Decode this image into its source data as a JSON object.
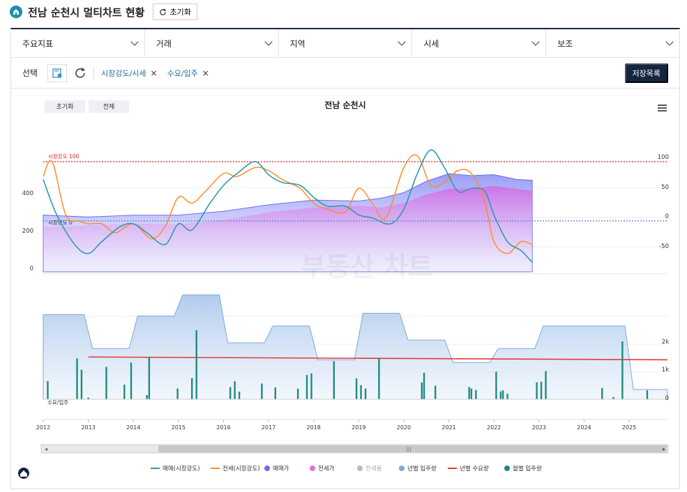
{
  "header": {
    "title": "전남 순천시 멀티차트 현황",
    "reset_label": "초기화"
  },
  "filters": [
    {
      "label": "주요지표"
    },
    {
      "label": "거래"
    },
    {
      "label": "지역"
    },
    {
      "label": "시세"
    },
    {
      "label": "보조"
    }
  ],
  "selection": {
    "label": "선택",
    "chips": [
      "시장강도/시세",
      "수요/입주"
    ],
    "save_label": "저장목록"
  },
  "chart_controls": {
    "reset_label": "초기화",
    "all_label": "전체"
  },
  "colors": {
    "trade": "#2e9aa8",
    "jeonse": "#ff8c2a",
    "trade_price": "#6b6cf0",
    "jeonse_price": "#e070e0",
    "jeonse_rate": "#bbbbbb",
    "yearly_supply": "#7fa8d8",
    "yearly_demand": "#e03a3a",
    "monthly_supply": "#1d8a80"
  },
  "chart_data": {
    "type": "line",
    "title": "전남 순천시",
    "x_ticks": [
      "2012",
      "2013",
      "2014",
      "2015",
      "2016",
      "2017",
      "2018",
      "2019",
      "2020",
      "2021",
      "2022",
      "2023",
      "2024",
      "2025"
    ],
    "upper": {
      "left_ticks": [
        "400",
        "200",
        "0"
      ],
      "right_ticks": [
        "100",
        "50",
        "0",
        "-50"
      ],
      "ref_lines": [
        {
          "label": "시장강도 100",
          "value": 100,
          "color": "#e02020"
        },
        {
          "label": "시장강도 0",
          "value": 0,
          "color": "#5a7ad8"
        }
      ],
      "ylim_strength": [
        -80,
        100
      ],
      "ylim_price": [
        0,
        500
      ],
      "series": [
        {
          "name": "매매(시장강도)",
          "x": [
            2012.0,
            2012.3,
            2012.7,
            2013.0,
            2013.3,
            2013.7,
            2014.0,
            2014.3,
            2014.7,
            2015.0,
            2015.3,
            2015.7,
            2016.0,
            2016.3,
            2016.7,
            2017.0,
            2017.3,
            2017.7,
            2018.0,
            2018.3,
            2018.7,
            2019.0,
            2019.3,
            2019.7,
            2020.0,
            2020.3,
            2020.6,
            2020.9,
            2021.2,
            2021.5,
            2021.8,
            2022.0,
            2022.3,
            2022.6,
            2022.85
          ],
          "values": [
            70,
            10,
            -40,
            -55,
            -35,
            -10,
            -5,
            -20,
            -40,
            -5,
            -15,
            30,
            60,
            80,
            100,
            78,
            65,
            60,
            40,
            25,
            25,
            10,
            5,
            -5,
            20,
            80,
            120,
            90,
            50,
            55,
            50,
            10,
            -35,
            -50,
            -70
          ]
        },
        {
          "name": "전세(시장강도)",
          "x": [
            2012.0,
            2012.2,
            2012.5,
            2012.8,
            2013.0,
            2013.3,
            2013.6,
            2014.0,
            2014.4,
            2014.7,
            2015.0,
            2015.3,
            2015.6,
            2016.0,
            2016.3,
            2016.7,
            2017.0,
            2017.3,
            2017.7,
            2018.0,
            2018.3,
            2018.7,
            2019.0,
            2019.3,
            2019.6,
            2020.0,
            2020.3,
            2020.6,
            2020.9,
            2021.2,
            2021.5,
            2021.8,
            2022.0,
            2022.3,
            2022.6,
            2022.85
          ],
          "values": [
            75,
            100,
            10,
            0,
            -5,
            -5,
            -20,
            -5,
            -30,
            -10,
            40,
            30,
            50,
            80,
            75,
            90,
            85,
            70,
            55,
            30,
            20,
            15,
            55,
            30,
            5,
            90,
            110,
            60,
            65,
            85,
            80,
            30,
            -35,
            -55,
            -35,
            -40
          ]
        },
        {
          "name": "매매가",
          "x": [
            2012,
            2013,
            2014,
            2015,
            2016,
            2017,
            2018,
            2019,
            2019.5,
            2020,
            2020.5,
            2021,
            2021.5,
            2022,
            2022.5,
            2022.85
          ],
          "values": [
            290,
            280,
            290,
            290,
            310,
            345,
            370,
            365,
            380,
            410,
            470,
            510,
            500,
            505,
            480,
            475
          ]
        },
        {
          "name": "전세가",
          "x": [
            2012,
            2013,
            2014,
            2015,
            2016,
            2017,
            2018,
            2019,
            2019.5,
            2020,
            2020.5,
            2021,
            2021.5,
            2022,
            2022.5,
            2022.85
          ],
          "values": [
            225,
            235,
            245,
            240,
            265,
            305,
            330,
            340,
            330,
            355,
            400,
            430,
            430,
            445,
            430,
            420
          ]
        }
      ]
    },
    "lower": {
      "right_ticks": [
        "2k",
        "1k",
        "0"
      ],
      "ylim": [
        0,
        3700
      ],
      "label": "수요/입주",
      "yearly_supply": [
        3000,
        1800,
        2950,
        3700,
        2000,
        2600,
        1400,
        3050,
        2100,
        1300,
        1800,
        2600,
        2600,
        350
      ],
      "yearly_demand": [
        1500,
        1500,
        1490,
        1480,
        1470,
        1460,
        1450,
        1440,
        1440,
        1430,
        1420,
        1410,
        1400,
        1400
      ],
      "monthly_supply": [
        {
          "x": 2012.1,
          "v": 650
        },
        {
          "x": 2012.75,
          "v": 1450
        },
        {
          "x": 2012.85,
          "v": 1050
        },
        {
          "x": 2013.0,
          "v": 60
        },
        {
          "x": 2013.4,
          "v": 1150
        },
        {
          "x": 2013.8,
          "v": 520
        },
        {
          "x": 2013.95,
          "v": 1300
        },
        {
          "x": 2014.3,
          "v": 150
        },
        {
          "x": 2014.35,
          "v": 1500
        },
        {
          "x": 2014.98,
          "v": 380
        },
        {
          "x": 2015.3,
          "v": 750
        },
        {
          "x": 2015.4,
          "v": 2450
        },
        {
          "x": 2016.15,
          "v": 430
        },
        {
          "x": 2016.25,
          "v": 640
        },
        {
          "x": 2016.35,
          "v": 270
        },
        {
          "x": 2016.85,
          "v": 560
        },
        {
          "x": 2017.15,
          "v": 420
        },
        {
          "x": 2017.65,
          "v": 380
        },
        {
          "x": 2017.85,
          "v": 860
        },
        {
          "x": 2017.95,
          "v": 920
        },
        {
          "x": 2018.45,
          "v": 1350
        },
        {
          "x": 2018.95,
          "v": 740
        },
        {
          "x": 2019.05,
          "v": 500
        },
        {
          "x": 2019.15,
          "v": 380
        },
        {
          "x": 2019.45,
          "v": 1450
        },
        {
          "x": 2020.4,
          "v": 600
        },
        {
          "x": 2020.45,
          "v": 940
        },
        {
          "x": 2020.7,
          "v": 480
        },
        {
          "x": 2021.45,
          "v": 440
        },
        {
          "x": 2021.5,
          "v": 380
        },
        {
          "x": 2021.6,
          "v": 330
        },
        {
          "x": 2022.05,
          "v": 980
        },
        {
          "x": 2022.15,
          "v": 280
        },
        {
          "x": 2022.2,
          "v": 320
        },
        {
          "x": 2022.3,
          "v": 200
        },
        {
          "x": 2022.95,
          "v": 600
        },
        {
          "x": 2023.05,
          "v": 620
        },
        {
          "x": 2023.15,
          "v": 1000
        },
        {
          "x": 2024.4,
          "v": 400
        },
        {
          "x": 2024.65,
          "v": 80
        },
        {
          "x": 2024.85,
          "v": 2050
        },
        {
          "x": 2025.4,
          "v": 320
        }
      ]
    },
    "legend": [
      "매매(시장강도)",
      "전세(시장강도)",
      "매매가",
      "전세가",
      "전세율",
      "년별 입주량",
      "년별 수요량",
      "월별 입주량"
    ],
    "legend_placement": "bottom",
    "watermark": "부동산 차트"
  }
}
